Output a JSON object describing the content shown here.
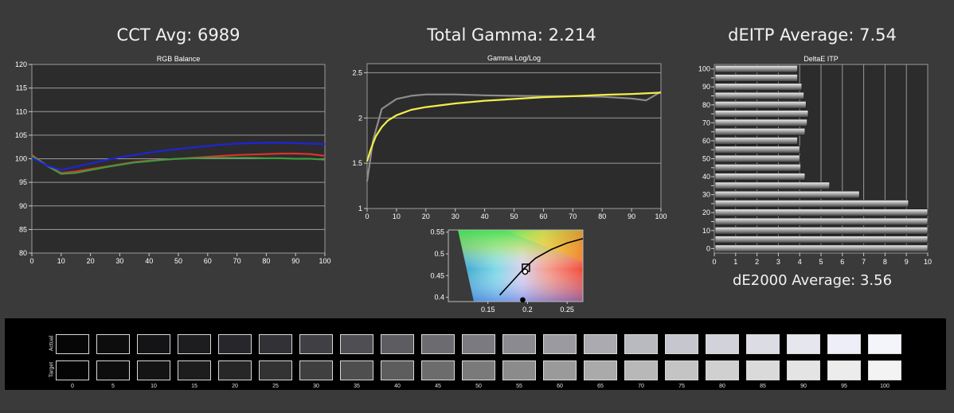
{
  "titles": {
    "cct": "CCT Avg: 6989",
    "gamma": "Total Gamma: 2.214",
    "deitp": "dEITP Average: 7.54",
    "de2000": "dE2000 Average: 3.56"
  },
  "chart_data": [
    {
      "type": "line",
      "title": "RGB Balance",
      "xlim": [
        0,
        100
      ],
      "ylim": [
        80,
        120
      ],
      "xticks": [
        0,
        10,
        20,
        30,
        40,
        50,
        60,
        70,
        80,
        90,
        100
      ],
      "yticks": [
        80,
        85,
        90,
        95,
        100,
        105,
        110,
        115,
        120
      ],
      "grid": "horizontal",
      "x": [
        0,
        5,
        10,
        15,
        20,
        25,
        30,
        35,
        40,
        45,
        50,
        55,
        60,
        65,
        70,
        75,
        80,
        85,
        90,
        95,
        100
      ],
      "series": [
        {
          "color": "#e0302a",
          "values": [
            100.8,
            98.6,
            97.0,
            97.3,
            97.8,
            98.3,
            98.8,
            99.3,
            99.6,
            99.8,
            100.0,
            100.2,
            100.4,
            100.6,
            100.8,
            100.9,
            101.0,
            101.1,
            101.1,
            101.0,
            100.6
          ]
        },
        {
          "color": "#3e9a3e",
          "values": [
            100.6,
            98.6,
            96.8,
            97.0,
            97.6,
            98.2,
            98.7,
            99.2,
            99.5,
            99.8,
            100.0,
            100.1,
            100.2,
            100.2,
            100.2,
            100.2,
            100.1,
            100.1,
            100.0,
            100.0,
            99.8
          ]
        },
        {
          "color": "#1e24d8",
          "values": [
            100.2,
            98.6,
            97.6,
            98.3,
            99.0,
            99.7,
            100.3,
            100.8,
            101.3,
            101.7,
            102.1,
            102.4,
            102.7,
            103.0,
            103.2,
            103.3,
            103.4,
            103.4,
            103.3,
            103.2,
            103.1
          ]
        }
      ]
    },
    {
      "type": "line",
      "title": "Gamma Log/Log",
      "xlim": [
        0,
        100
      ],
      "ylim": [
        1,
        2.6
      ],
      "xticks": [
        0,
        10,
        20,
        30,
        40,
        50,
        60,
        70,
        80,
        90,
        100
      ],
      "yticks": [
        1,
        1.5,
        2,
        2.5
      ],
      "grid": "horizontal",
      "series": [
        {
          "color": "#8c8c8c",
          "x": [
            0,
            2,
            5,
            10,
            15,
            20,
            30,
            40,
            50,
            60,
            70,
            80,
            90,
            95,
            100
          ],
          "values": [
            1.3,
            1.75,
            2.1,
            2.21,
            2.245,
            2.26,
            2.26,
            2.25,
            2.245,
            2.24,
            2.24,
            2.235,
            2.215,
            2.195,
            2.29
          ]
        },
        {
          "color": "#f2ef4a",
          "x": [
            0,
            1,
            2,
            3,
            5,
            7,
            10,
            15,
            20,
            30,
            40,
            50,
            60,
            70,
            80,
            90,
            100
          ],
          "values": [
            1.52,
            1.63,
            1.72,
            1.8,
            1.9,
            1.97,
            2.03,
            2.09,
            2.12,
            2.16,
            2.19,
            2.21,
            2.23,
            2.24,
            2.255,
            2.265,
            2.28
          ]
        }
      ]
    },
    {
      "type": "scatter",
      "title": "",
      "xlim": [
        0.1,
        0.27
      ],
      "ylim": [
        0.39,
        0.555
      ],
      "xticks": [
        0.15,
        0.2,
        0.25
      ],
      "yticks": [
        0.4,
        0.45,
        0.5,
        0.55
      ],
      "target": {
        "x": 0.198,
        "y": 0.468
      },
      "measured": [
        {
          "x": 0.197,
          "y": 0.459
        },
        {
          "x": 0.194,
          "y": 0.394
        }
      ],
      "planckian": {
        "x": [
          0.165,
          0.18,
          0.195,
          0.21,
          0.23,
          0.25,
          0.27
        ],
        "y": [
          0.405,
          0.435,
          0.465,
          0.49,
          0.51,
          0.525,
          0.535
        ]
      }
    },
    {
      "type": "bar",
      "orientation": "horizontal",
      "title": "DeltaE ITP",
      "xlim": [
        0,
        10
      ],
      "xticks": [
        0,
        1,
        2,
        3,
        4,
        5,
        6,
        7,
        8,
        9,
        10
      ],
      "categories": [
        100,
        95,
        90,
        85,
        80,
        75,
        70,
        65,
        60,
        55,
        50,
        45,
        40,
        35,
        30,
        25,
        20,
        15,
        10,
        5,
        0
      ],
      "values": [
        3.9,
        3.9,
        4.1,
        4.2,
        4.3,
        4.4,
        4.35,
        4.25,
        3.9,
        4.0,
        4.0,
        4.05,
        4.25,
        5.4,
        6.8,
        9.1,
        10,
        10,
        10,
        10,
        10
      ]
    }
  ],
  "strip": {
    "row_actual": "Actual",
    "row_target": "Target",
    "levels": [
      "0",
      "5",
      "10",
      "15",
      "20",
      "25",
      "30",
      "35",
      "40",
      "45",
      "50",
      "55",
      "60",
      "65",
      "70",
      "75",
      "80",
      "85",
      "90",
      "95",
      "100"
    ],
    "actual_colors": [
      "#060606",
      "#0d0d0e",
      "#141416",
      "#1d1d20",
      "#27272b",
      "#323236",
      "#3f3f44",
      "#4e4e53",
      "#5c5c61",
      "#6b6b70",
      "#7a7a80",
      "#8a8a90",
      "#9a9aa0",
      "#aaaab0",
      "#b9b9c0",
      "#c6c6ce",
      "#d2d2da",
      "#dcdce4",
      "#e6e6ef",
      "#eeeef8",
      "#f4f4fb"
    ],
    "target_colors": [
      "#050505",
      "#0d0d0d",
      "#141414",
      "#1d1d1d",
      "#272727",
      "#333333",
      "#3f3f3f",
      "#4e4e4e",
      "#5d5d5d",
      "#6c6c6c",
      "#7a7a7a",
      "#8b8b8b",
      "#9a9a9a",
      "#aaaaaa",
      "#b8b8b8",
      "#c4c4c4",
      "#d0d0d0",
      "#dadada",
      "#e4e4e4",
      "#ececec",
      "#f3f3f3"
    ]
  }
}
